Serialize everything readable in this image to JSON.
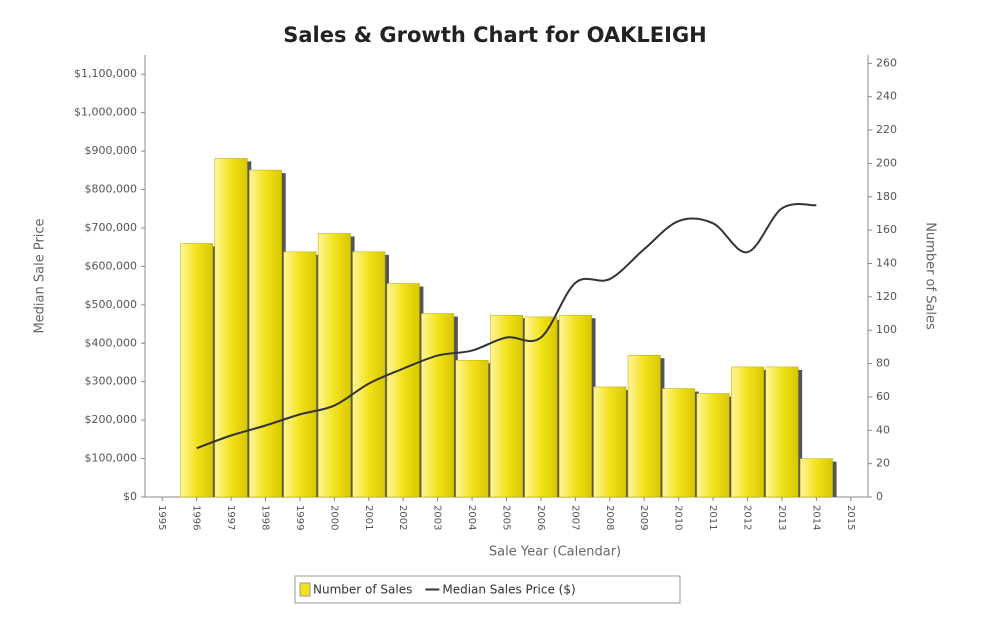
{
  "chart_data": {
    "type": "bar",
    "title": "Sales & Growth Chart for OAKLEIGH",
    "x_label": "Sale Year (Calendar)",
    "y_label": "Median Sale Price",
    "y2_label": "Number of Sales",
    "categories": [
      "1995",
      "1996",
      "1997",
      "1998",
      "1999",
      "2000",
      "2001",
      "2002",
      "2003",
      "2004",
      "2005",
      "2006",
      "2007",
      "2008",
      "2009",
      "2010",
      "2011",
      "2012",
      "2013",
      "2014",
      "2015"
    ],
    "series": [
      {
        "name": "Number of Sales",
        "type": "bar",
        "axis": "y2",
        "color": "#f2e21c",
        "values": [
          null,
          152,
          203,
          196,
          147,
          158,
          147,
          128,
          110,
          82,
          109,
          108,
          109,
          66,
          85,
          65,
          62,
          78,
          78,
          23,
          null
        ]
      },
      {
        "name": "Median Sales Price ($)",
        "type": "line",
        "axis": "y",
        "color": "#333333",
        "values": [
          null,
          127000,
          160000,
          186000,
          215000,
          238000,
          295000,
          334000,
          368000,
          381000,
          415000,
          415000,
          557000,
          567000,
          645000,
          718000,
          712000,
          637000,
          751000,
          759000,
          null
        ]
      }
    ],
    "ylim": [
      0,
      1150000
    ],
    "yticks": [
      {
        "value": 0,
        "label": "$0"
      },
      {
        "value": 100000,
        "label": "$100,000"
      },
      {
        "value": 200000,
        "label": "$200,000"
      },
      {
        "value": 300000,
        "label": "$300,000"
      },
      {
        "value": 400000,
        "label": "$400,000"
      },
      {
        "value": 500000,
        "label": "$500,000"
      },
      {
        "value": 600000,
        "label": "$600,000"
      },
      {
        "value": 700000,
        "label": "$700,000"
      },
      {
        "value": 800000,
        "label": "$800,000"
      },
      {
        "value": 900000,
        "label": "$900,000"
      },
      {
        "value": 1000000,
        "label": "$1,000,000"
      },
      {
        "value": 1100000,
        "label": "$1,100,000"
      }
    ],
    "y2lim": [
      0,
      265
    ],
    "y2ticks": [
      0,
      20,
      40,
      60,
      80,
      100,
      120,
      140,
      160,
      180,
      200,
      220,
      240,
      260
    ],
    "legend": "bottom"
  }
}
